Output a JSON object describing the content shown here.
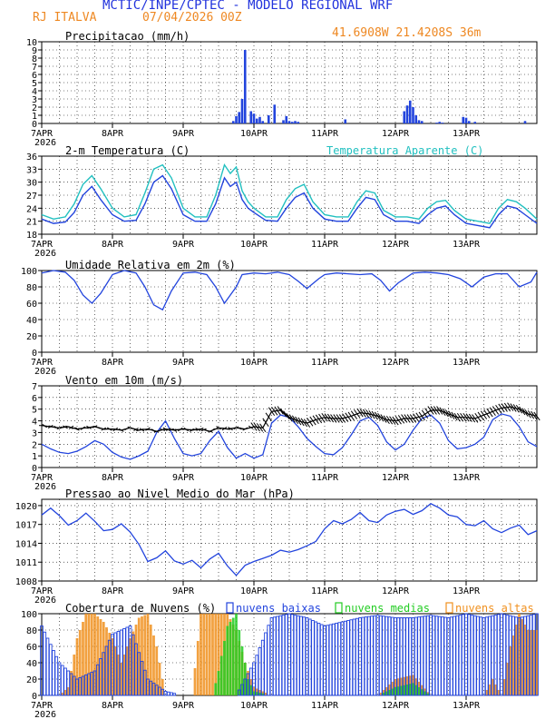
{
  "header": {
    "title": "MCTIC/INPE/CPTEC - MODELO REGIONAL WRF",
    "location": "RJ ITALVA",
    "date": "07/04/2026 00Z",
    "coords": "41.6908W 21.4208S 36m",
    "colors": {
      "title": "#2233dd",
      "orange": "#ee8822"
    }
  },
  "x_axis": {
    "day_labels": [
      "7APR",
      "8APR",
      "9APR",
      "10APR",
      "11APR",
      "12APR",
      "13APR"
    ],
    "year_label": "2026",
    "hours": 168
  },
  "colors": {
    "blue": "#2244dd",
    "cyan": "#22c0c0",
    "green": "#22cc22",
    "orange": "#f0901e",
    "black": "#000000"
  },
  "chart_data": [
    {
      "type": "bar",
      "title": "Precipitacao (mm/h)",
      "ylim": [
        0,
        10
      ],
      "yticks": [
        "0",
        "1",
        "2",
        "3",
        "4",
        "5",
        "6",
        "7",
        "8",
        "9",
        "10"
      ],
      "series": [
        {
          "name": "",
          "hours": [
            65,
            66,
            67,
            68,
            69,
            71,
            72,
            73,
            74,
            75,
            77,
            79,
            82,
            83,
            84,
            85,
            86,
            87,
            103,
            123,
            124,
            125,
            126,
            127,
            128,
            129,
            134,
            135,
            136,
            143,
            144,
            145,
            147,
            164
          ],
          "values": [
            0.3,
            0.9,
            1.4,
            3.0,
            9.0,
            1.5,
            1.2,
            0.6,
            0.8,
            0.3,
            1.0,
            2.3,
            0.4,
            0.9,
            0.3,
            0.2,
            0.3,
            0.2,
            0.5,
            1.5,
            2.2,
            2.8,
            2.0,
            1.0,
            0.4,
            0.3,
            0.1,
            0.2,
            0.1,
            0.8,
            0.7,
            0.3,
            0.2,
            0.3
          ]
        }
      ]
    },
    {
      "type": "line",
      "title": "2-m Temperatura (C)",
      "legend": "Temperatura Aparente (C)",
      "ylim": [
        18,
        36
      ],
      "yticks": [
        "18",
        "21",
        "24",
        "27",
        "30",
        "33",
        "36"
      ],
      "series": [
        {
          "name": "2-m Temperatura (C)",
          "hours": [
            0,
            4,
            8,
            11,
            14,
            17,
            20,
            24,
            28,
            32,
            35,
            38,
            41,
            44,
            48,
            52,
            56,
            59,
            62,
            64,
            66,
            68,
            70,
            72,
            76,
            80,
            83,
            86,
            89,
            92,
            96,
            100,
            104,
            107,
            110,
            113,
            116,
            120,
            124,
            128,
            131,
            134,
            137,
            140,
            144,
            148,
            152,
            155,
            158,
            161,
            164,
            168
          ],
          "values": [
            21.5,
            20.5,
            20.8,
            23.0,
            27.0,
            29.0,
            26.0,
            22.5,
            21.0,
            21.2,
            25.0,
            30.0,
            31.5,
            28.5,
            22.5,
            21.0,
            21.0,
            25.0,
            31.0,
            29.0,
            30.0,
            26.0,
            24.0,
            23.0,
            21.2,
            21.0,
            24.0,
            26.5,
            27.5,
            24.0,
            21.5,
            21.0,
            21.0,
            24.0,
            26.5,
            26.0,
            22.5,
            21.0,
            21.0,
            20.5,
            22.5,
            24.0,
            24.5,
            22.5,
            20.5,
            20.0,
            19.5,
            22.5,
            24.5,
            24.0,
            22.5,
            20.5
          ]
        },
        {
          "name": "Temperatura Aparente (C)",
          "hours": [
            0,
            4,
            8,
            11,
            14,
            17,
            20,
            24,
            28,
            32,
            35,
            38,
            41,
            44,
            48,
            52,
            56,
            59,
            62,
            64,
            66,
            68,
            70,
            72,
            76,
            80,
            83,
            86,
            89,
            92,
            96,
            100,
            104,
            107,
            110,
            113,
            116,
            120,
            124,
            128,
            131,
            134,
            137,
            140,
            144,
            148,
            152,
            155,
            158,
            161,
            164,
            168
          ],
          "values": [
            22.5,
            21.5,
            22.0,
            25.0,
            29.5,
            31.5,
            28.5,
            24.0,
            22.0,
            22.5,
            27.5,
            33.0,
            34.0,
            31.0,
            24.0,
            22.0,
            22.0,
            27.0,
            34.0,
            32.0,
            33.5,
            28.0,
            25.5,
            24.0,
            22.0,
            22.0,
            26.0,
            28.5,
            29.5,
            25.5,
            22.5,
            22.0,
            22.0,
            25.5,
            28.0,
            27.5,
            23.5,
            22.0,
            22.0,
            21.5,
            24.0,
            25.5,
            25.8,
            23.5,
            21.5,
            21.0,
            20.5,
            24.0,
            26.0,
            25.5,
            24.0,
            21.5
          ]
        }
      ]
    },
    {
      "type": "line",
      "title": "Umidade Relativa em 2m (%)",
      "ylim": [
        0,
        100
      ],
      "yticks": [
        "0",
        "20",
        "40",
        "60",
        "80",
        "100"
      ],
      "series": [
        {
          "name": "",
          "hours": [
            0,
            4,
            8,
            11,
            14,
            17,
            20,
            24,
            28,
            32,
            35,
            38,
            41,
            44,
            48,
            52,
            56,
            59,
            62,
            64,
            66,
            68,
            72,
            76,
            80,
            84,
            87,
            90,
            94,
            96,
            100,
            104,
            108,
            112,
            115,
            118,
            121,
            126,
            130,
            134,
            138,
            142,
            146,
            150,
            154,
            158,
            162,
            166,
            168
          ],
          "values": [
            97,
            100,
            98,
            88,
            70,
            60,
            72,
            95,
            100,
            97,
            80,
            58,
            52,
            75,
            97,
            98,
            95,
            80,
            60,
            70,
            80,
            95,
            97,
            96,
            98,
            95,
            87,
            78,
            90,
            95,
            97,
            96,
            95,
            96,
            88,
            75,
            85,
            97,
            98,
            97,
            95,
            90,
            80,
            92,
            96,
            96,
            80,
            86,
            98
          ]
        }
      ]
    },
    {
      "type": "line",
      "title": "Vento em 10m (m/s)",
      "ylim": [
        0,
        7
      ],
      "yticks": [
        "0",
        "1",
        "2",
        "3",
        "4",
        "5",
        "6",
        "7"
      ],
      "series": [
        {
          "name": "Vento em 10m (m/s)",
          "hours": [
            0,
            3,
            6,
            9,
            12,
            15,
            18,
            21,
            24,
            27,
            30,
            33,
            36,
            39,
            42,
            45,
            48,
            51,
            54,
            57,
            60,
            63,
            66,
            69,
            72,
            75,
            78,
            81,
            84,
            87,
            90,
            93,
            96,
            99,
            102,
            105,
            108,
            111,
            114,
            117,
            120,
            123,
            126,
            129,
            132,
            135,
            138,
            141,
            144,
            147,
            150,
            153,
            156,
            159,
            162,
            165,
            168
          ],
          "values": [
            2.0,
            1.6,
            1.3,
            1.2,
            1.4,
            1.8,
            2.3,
            2.0,
            1.3,
            0.9,
            0.7,
            1.0,
            1.4,
            3.0,
            4.0,
            2.5,
            1.2,
            1.0,
            1.2,
            2.3,
            3.1,
            1.7,
            0.8,
            1.2,
            0.8,
            1.1,
            3.8,
            4.5,
            4.3,
            3.5,
            2.5,
            1.8,
            1.2,
            1.1,
            1.7,
            2.8,
            4.0,
            4.3,
            3.6,
            2.2,
            1.5,
            2.0,
            3.2,
            4.2,
            4.5,
            3.8,
            2.3,
            1.6,
            1.7,
            2.0,
            2.6,
            4.1,
            4.6,
            4.4,
            3.5,
            2.2,
            1.8
          ]
        },
        {
          "name": "",
          "hours": [
            0,
            3,
            6,
            9,
            12,
            15,
            18,
            21,
            24,
            27,
            30,
            33,
            36,
            39,
            42,
            45,
            48,
            51,
            54,
            57,
            60,
            63,
            66,
            69,
            72,
            75,
            78,
            81,
            84,
            87,
            90,
            93,
            96,
            99,
            102,
            105,
            108,
            111,
            114,
            117,
            120,
            123,
            126,
            129,
            132,
            135,
            138,
            141,
            144,
            147,
            150,
            153,
            156,
            159,
            162,
            165,
            168
          ],
          "values": [
            3.6,
            3.5,
            3.4,
            3.5,
            3.3,
            3.4,
            3.5,
            3.3,
            3.3,
            3.2,
            3.4,
            3.2,
            3.3,
            3.1,
            3.3,
            3.2,
            3.3,
            3.2,
            3.3,
            3.1,
            3.4,
            3.3,
            3.4,
            3.3,
            3.5,
            3.4,
            4.8,
            4.9,
            4.3,
            4.0,
            3.8,
            4.1,
            4.3,
            4.2,
            4.2,
            4.4,
            4.7,
            4.6,
            4.4,
            4.1,
            4.0,
            4.2,
            4.2,
            4.4,
            4.9,
            4.9,
            4.6,
            4.3,
            4.3,
            4.2,
            4.5,
            4.8,
            5.1,
            5.2,
            5.0,
            4.6,
            4.4
          ]
        }
      ]
    },
    {
      "type": "line",
      "title": "Pressao ao Nivel Medio do Mar (hPa)",
      "ylim": [
        1008,
        1021
      ],
      "yticks": [
        "1008",
        "1011",
        "1014",
        "1017",
        "1020"
      ],
      "series": [
        {
          "name": "",
          "hours": [
            0,
            3,
            6,
            9,
            12,
            15,
            18,
            21,
            24,
            27,
            30,
            33,
            36,
            39,
            42,
            45,
            48,
            51,
            54,
            57,
            60,
            63,
            66,
            69,
            72,
            75,
            78,
            81,
            84,
            87,
            90,
            93,
            96,
            99,
            102,
            105,
            108,
            111,
            114,
            117,
            120,
            123,
            126,
            129,
            132,
            135,
            138,
            141,
            144,
            147,
            150,
            153,
            156,
            159,
            162,
            165,
            168
          ],
          "values": [
            1018.5,
            1019.6,
            1018.4,
            1016.9,
            1017.6,
            1018.8,
            1017.5,
            1016.0,
            1016.2,
            1017.1,
            1015.8,
            1013.8,
            1011.1,
            1011.7,
            1012.8,
            1011.2,
            1010.7,
            1011.3,
            1010.1,
            1011.5,
            1012.4,
            1010.4,
            1008.9,
            1010.5,
            1011.1,
            1011.6,
            1012.1,
            1012.9,
            1012.6,
            1013.0,
            1013.6,
            1014.3,
            1016.3,
            1017.6,
            1017.1,
            1017.8,
            1018.9,
            1017.6,
            1017.3,
            1018.5,
            1019.1,
            1019.4,
            1018.6,
            1019.2,
            1020.3,
            1019.6,
            1018.5,
            1018.2,
            1017.0,
            1016.8,
            1017.6,
            1016.3,
            1015.7,
            1016.4,
            1016.9,
            1015.4,
            1016.0
          ]
        }
      ]
    },
    {
      "type": "bar",
      "title": "Cobertura de Nuvens (%)",
      "ylim": [
        0,
        100
      ],
      "yticks": [
        "0",
        "20",
        "40",
        "60",
        "80",
        "100"
      ],
      "series": [
        {
          "name": "nuvens baixas",
          "hours": [
            0,
            6,
            12,
            18,
            24,
            30,
            36,
            42,
            48,
            54,
            60,
            66,
            72,
            78,
            84,
            90,
            96,
            102,
            108,
            114,
            120,
            126,
            132,
            138,
            144,
            150,
            156,
            162,
            168
          ],
          "values": [
            85,
            40,
            20,
            30,
            75,
            85,
            20,
            5,
            0,
            0,
            0,
            0,
            40,
            95,
            100,
            95,
            85,
            90,
            95,
            98,
            95,
            95,
            98,
            95,
            100,
            95,
            100,
            95,
            100
          ]
        },
        {
          "name": "nuvens medias",
          "hours": [
            0,
            6,
            12,
            18,
            24,
            30,
            36,
            42,
            48,
            54,
            58,
            60,
            63,
            66,
            68,
            70,
            72,
            78,
            84,
            90,
            96,
            102,
            108,
            114,
            120,
            126,
            132,
            138,
            144,
            150,
            156,
            162,
            168
          ],
          "values": [
            0,
            0,
            0,
            0,
            0,
            0,
            0,
            0,
            0,
            0,
            0,
            30,
            85,
            100,
            60,
            20,
            5,
            0,
            0,
            0,
            0,
            0,
            0,
            0,
            10,
            15,
            0,
            0,
            0,
            0,
            0,
            0,
            0
          ]
        },
        {
          "name": "nuvens altas",
          "hours": [
            0,
            3,
            6,
            9,
            12,
            15,
            18,
            21,
            24,
            27,
            30,
            33,
            36,
            39,
            42,
            45,
            48,
            51,
            54,
            57,
            60,
            63,
            66,
            69,
            72,
            78,
            84,
            90,
            96,
            102,
            108,
            114,
            120,
            126,
            132,
            138,
            144,
            150,
            153,
            156,
            159,
            162,
            165,
            168
          ],
          "values": [
            0,
            0,
            0,
            10,
            70,
            100,
            100,
            90,
            70,
            40,
            70,
            95,
            100,
            60,
            0,
            0,
            0,
            0,
            100,
            100,
            100,
            100,
            80,
            40,
            10,
            0,
            0,
            0,
            0,
            0,
            0,
            0,
            20,
            25,
            0,
            0,
            0,
            0,
            20,
            0,
            60,
            100,
            80,
            80
          ]
        }
      ]
    }
  ]
}
